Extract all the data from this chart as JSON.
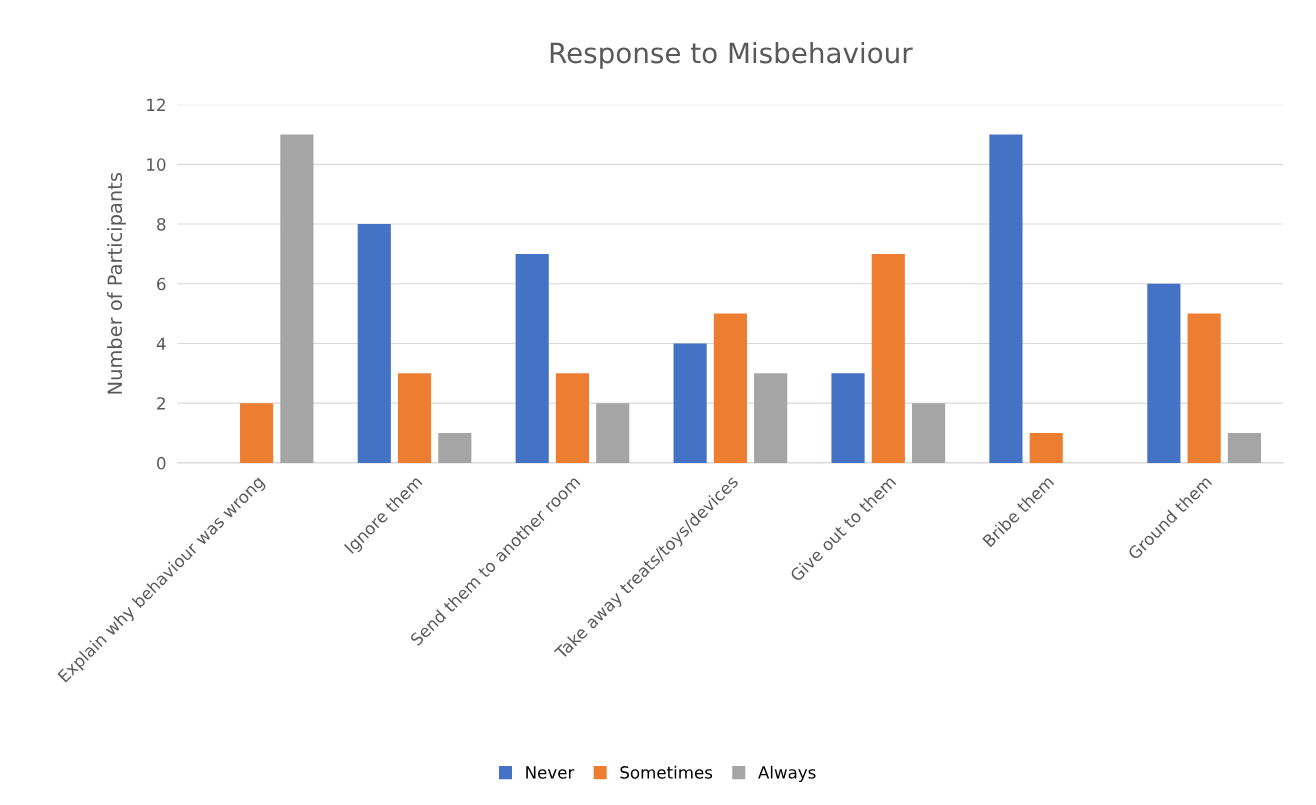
{
  "chart_data": {
    "type": "bar",
    "title": "Response to Misbehaviour",
    "ylabel": "Number of Participants",
    "categories": [
      "Explain why behaviour was wrong",
      "Ignore them",
      "Send them to another room",
      "Take away treats/toys/devices",
      "Give out to them",
      "Bribe them",
      "Ground them"
    ],
    "series": [
      {
        "name": "Never",
        "color": "#4472c4",
        "values": [
          0,
          8,
          7,
          4,
          3,
          11,
          6
        ]
      },
      {
        "name": "Sometimes",
        "color": "#ed7d31",
        "values": [
          2,
          3,
          3,
          5,
          7,
          1,
          5
        ]
      },
      {
        "name": "Always",
        "color": "#a5a5a5",
        "values": [
          11,
          1,
          2,
          3,
          2,
          0,
          1
        ]
      }
    ],
    "ylim": [
      0,
      12
    ],
    "yticks": [
      0,
      2,
      4,
      6,
      8,
      10,
      12
    ],
    "grid": "y",
    "legend": "bottom"
  }
}
